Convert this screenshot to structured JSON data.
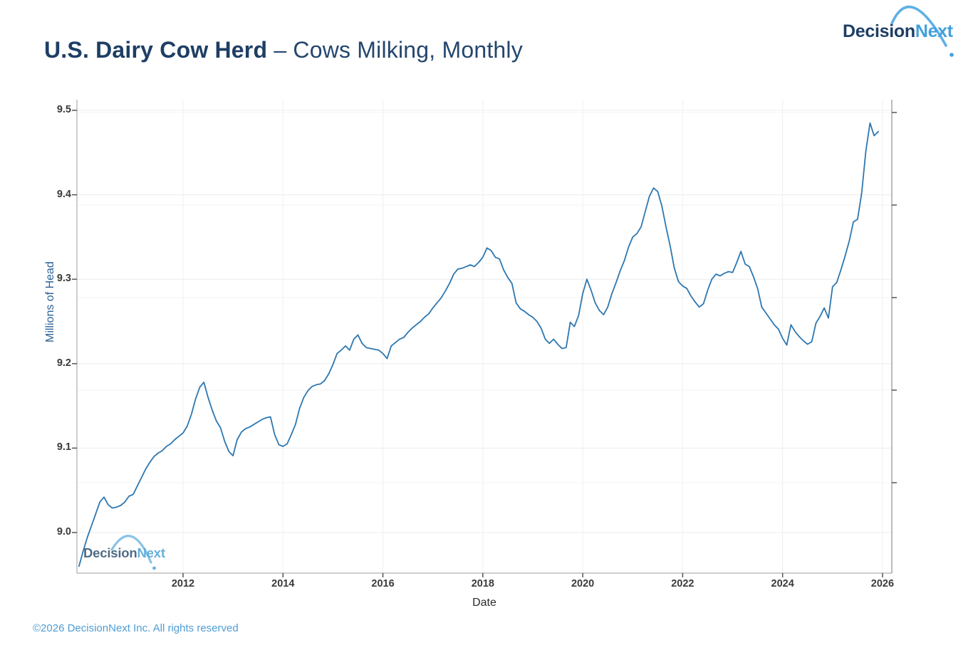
{
  "header": {
    "title_bold": "U.S. Dairy Cow Herd",
    "title_rest": "– Cows Milking, Monthly"
  },
  "logo": {
    "part1": "Decision",
    "part2": "Next"
  },
  "watermark": {
    "part1": "Decision",
    "part2": "Next"
  },
  "footer": {
    "copyright": "©2026 DecisionNext Inc. All rights reserved"
  },
  "colors": {
    "line": "#2d77b0",
    "title_navy": "#1e3e64",
    "logo_light_blue": "#41a0dc",
    "footer_blue": "#4f9dd5",
    "axis_gray": "#9c9c9c"
  },
  "chart_data": {
    "type": "line",
    "title": "U.S. Dairy Cow Herd – Cows Milking, Monthly",
    "xlabel": "Date",
    "ylabel": "Millions of Head",
    "x_ticks": [
      2012,
      2014,
      2016,
      2018,
      2020,
      2022,
      2024,
      2026
    ],
    "y_ticks": [
      9.0,
      9.1,
      9.2,
      9.3,
      9.4,
      9.5
    ],
    "y_tick_labels": [
      "9.0",
      "9.1",
      "9.2",
      "9.3",
      "9.4",
      "9.5"
    ],
    "xlim": [
      2009.87,
      2026.19
    ],
    "ylim": [
      8.95,
      9.51
    ],
    "grid": "faint",
    "legend": "none",
    "line_color": "#2d77b0",
    "series": [
      {
        "name": "Cows Milking (millions of head)",
        "points": [
          [
            2009.917,
            8.96
          ],
          [
            2010.0,
            8.978
          ],
          [
            2010.083,
            8.994
          ],
          [
            2010.167,
            9.008
          ],
          [
            2010.25,
            9.022
          ],
          [
            2010.333,
            9.036
          ],
          [
            2010.417,
            9.042
          ],
          [
            2010.5,
            9.033
          ],
          [
            2010.583,
            9.029
          ],
          [
            2010.667,
            9.03
          ],
          [
            2010.75,
            9.032
          ],
          [
            2010.833,
            9.036
          ],
          [
            2010.917,
            9.043
          ],
          [
            2011.0,
            9.045
          ],
          [
            2011.083,
            9.055
          ],
          [
            2011.167,
            9.065
          ],
          [
            2011.25,
            9.075
          ],
          [
            2011.333,
            9.083
          ],
          [
            2011.417,
            9.09
          ],
          [
            2011.5,
            9.094
          ],
          [
            2011.583,
            9.097
          ],
          [
            2011.667,
            9.102
          ],
          [
            2011.75,
            9.105
          ],
          [
            2011.833,
            9.11
          ],
          [
            2011.917,
            9.114
          ],
          [
            2012.0,
            9.118
          ],
          [
            2012.083,
            9.126
          ],
          [
            2012.167,
            9.14
          ],
          [
            2012.25,
            9.158
          ],
          [
            2012.333,
            9.172
          ],
          [
            2012.417,
            9.178
          ],
          [
            2012.5,
            9.16
          ],
          [
            2012.583,
            9.145
          ],
          [
            2012.667,
            9.132
          ],
          [
            2012.75,
            9.124
          ],
          [
            2012.833,
            9.108
          ],
          [
            2012.917,
            9.096
          ],
          [
            2013.0,
            9.091
          ],
          [
            2013.083,
            9.11
          ],
          [
            2013.167,
            9.119
          ],
          [
            2013.25,
            9.123
          ],
          [
            2013.333,
            9.125
          ],
          [
            2013.417,
            9.128
          ],
          [
            2013.5,
            9.131
          ],
          [
            2013.583,
            9.134
          ],
          [
            2013.667,
            9.136
          ],
          [
            2013.75,
            9.137
          ],
          [
            2013.833,
            9.116
          ],
          [
            2013.917,
            9.104
          ],
          [
            2014.0,
            9.102
          ],
          [
            2014.083,
            9.105
          ],
          [
            2014.167,
            9.116
          ],
          [
            2014.25,
            9.128
          ],
          [
            2014.333,
            9.147
          ],
          [
            2014.417,
            9.16
          ],
          [
            2014.5,
            9.168
          ],
          [
            2014.583,
            9.173
          ],
          [
            2014.667,
            9.175
          ],
          [
            2014.75,
            9.176
          ],
          [
            2014.833,
            9.18
          ],
          [
            2014.917,
            9.188
          ],
          [
            2015.0,
            9.199
          ],
          [
            2015.083,
            9.212
          ],
          [
            2015.167,
            9.216
          ],
          [
            2015.25,
            9.221
          ],
          [
            2015.333,
            9.216
          ],
          [
            2015.417,
            9.229
          ],
          [
            2015.5,
            9.234
          ],
          [
            2015.583,
            9.224
          ],
          [
            2015.667,
            9.219
          ],
          [
            2015.75,
            9.218
          ],
          [
            2015.833,
            9.217
          ],
          [
            2015.917,
            9.216
          ],
          [
            2016.0,
            9.212
          ],
          [
            2016.083,
            9.206
          ],
          [
            2016.167,
            9.221
          ],
          [
            2016.25,
            9.225
          ],
          [
            2016.333,
            9.229
          ],
          [
            2016.417,
            9.231
          ],
          [
            2016.5,
            9.237
          ],
          [
            2016.583,
            9.242
          ],
          [
            2016.667,
            9.246
          ],
          [
            2016.75,
            9.25
          ],
          [
            2016.833,
            9.255
          ],
          [
            2016.917,
            9.259
          ],
          [
            2017.0,
            9.266
          ],
          [
            2017.083,
            9.272
          ],
          [
            2017.167,
            9.278
          ],
          [
            2017.25,
            9.286
          ],
          [
            2017.333,
            9.295
          ],
          [
            2017.417,
            9.306
          ],
          [
            2017.5,
            9.312
          ],
          [
            2017.583,
            9.313
          ],
          [
            2017.667,
            9.315
          ],
          [
            2017.75,
            9.317
          ],
          [
            2017.833,
            9.315
          ],
          [
            2017.917,
            9.32
          ],
          [
            2018.0,
            9.326
          ],
          [
            2018.083,
            9.337
          ],
          [
            2018.167,
            9.334
          ],
          [
            2018.25,
            9.326
          ],
          [
            2018.333,
            9.324
          ],
          [
            2018.417,
            9.311
          ],
          [
            2018.5,
            9.302
          ],
          [
            2018.583,
            9.295
          ],
          [
            2018.667,
            9.272
          ],
          [
            2018.75,
            9.265
          ],
          [
            2018.833,
            9.262
          ],
          [
            2018.917,
            9.258
          ],
          [
            2019.0,
            9.255
          ],
          [
            2019.083,
            9.25
          ],
          [
            2019.167,
            9.242
          ],
          [
            2019.25,
            9.229
          ],
          [
            2019.333,
            9.224
          ],
          [
            2019.417,
            9.229
          ],
          [
            2019.5,
            9.223
          ],
          [
            2019.583,
            9.218
          ],
          [
            2019.667,
            9.219
          ],
          [
            2019.75,
            9.249
          ],
          [
            2019.833,
            9.244
          ],
          [
            2019.917,
            9.257
          ],
          [
            2020.0,
            9.283
          ],
          [
            2020.083,
            9.3
          ],
          [
            2020.167,
            9.287
          ],
          [
            2020.25,
            9.272
          ],
          [
            2020.333,
            9.263
          ],
          [
            2020.417,
            9.258
          ],
          [
            2020.5,
            9.267
          ],
          [
            2020.583,
            9.283
          ],
          [
            2020.667,
            9.296
          ],
          [
            2020.75,
            9.31
          ],
          [
            2020.833,
            9.322
          ],
          [
            2020.917,
            9.338
          ],
          [
            2021.0,
            9.35
          ],
          [
            2021.083,
            9.354
          ],
          [
            2021.167,
            9.362
          ],
          [
            2021.25,
            9.38
          ],
          [
            2021.333,
            9.398
          ],
          [
            2021.417,
            9.408
          ],
          [
            2021.5,
            9.404
          ],
          [
            2021.583,
            9.387
          ],
          [
            2021.667,
            9.362
          ],
          [
            2021.75,
            9.339
          ],
          [
            2021.833,
            9.313
          ],
          [
            2021.917,
            9.297
          ],
          [
            2022.0,
            9.292
          ],
          [
            2022.083,
            9.289
          ],
          [
            2022.167,
            9.28
          ],
          [
            2022.25,
            9.273
          ],
          [
            2022.333,
            9.267
          ],
          [
            2022.417,
            9.271
          ],
          [
            2022.5,
            9.287
          ],
          [
            2022.583,
            9.3
          ],
          [
            2022.667,
            9.306
          ],
          [
            2022.75,
            9.304
          ],
          [
            2022.833,
            9.307
          ],
          [
            2022.917,
            9.309
          ],
          [
            2023.0,
            9.308
          ],
          [
            2023.083,
            9.32
          ],
          [
            2023.167,
            9.333
          ],
          [
            2023.25,
            9.318
          ],
          [
            2023.333,
            9.315
          ],
          [
            2023.417,
            9.303
          ],
          [
            2023.5,
            9.289
          ],
          [
            2023.583,
            9.267
          ],
          [
            2023.667,
            9.26
          ],
          [
            2023.75,
            9.253
          ],
          [
            2023.833,
            9.246
          ],
          [
            2023.917,
            9.241
          ],
          [
            2024.0,
            9.23
          ],
          [
            2024.083,
            9.222
          ],
          [
            2024.167,
            9.246
          ],
          [
            2024.25,
            9.238
          ],
          [
            2024.333,
            9.232
          ],
          [
            2024.417,
            9.227
          ],
          [
            2024.5,
            9.223
          ],
          [
            2024.583,
            9.226
          ],
          [
            2024.667,
            9.248
          ],
          [
            2024.75,
            9.256
          ],
          [
            2024.833,
            9.266
          ],
          [
            2024.917,
            9.254
          ],
          [
            2025.0,
            9.291
          ],
          [
            2025.083,
            9.296
          ],
          [
            2025.167,
            9.311
          ],
          [
            2025.25,
            9.327
          ],
          [
            2025.333,
            9.345
          ],
          [
            2025.417,
            9.368
          ],
          [
            2025.5,
            9.371
          ],
          [
            2025.583,
            9.402
          ],
          [
            2025.667,
            9.452
          ],
          [
            2025.75,
            9.485
          ],
          [
            2025.833,
            9.47
          ],
          [
            2025.917,
            9.475
          ]
        ]
      }
    ]
  }
}
